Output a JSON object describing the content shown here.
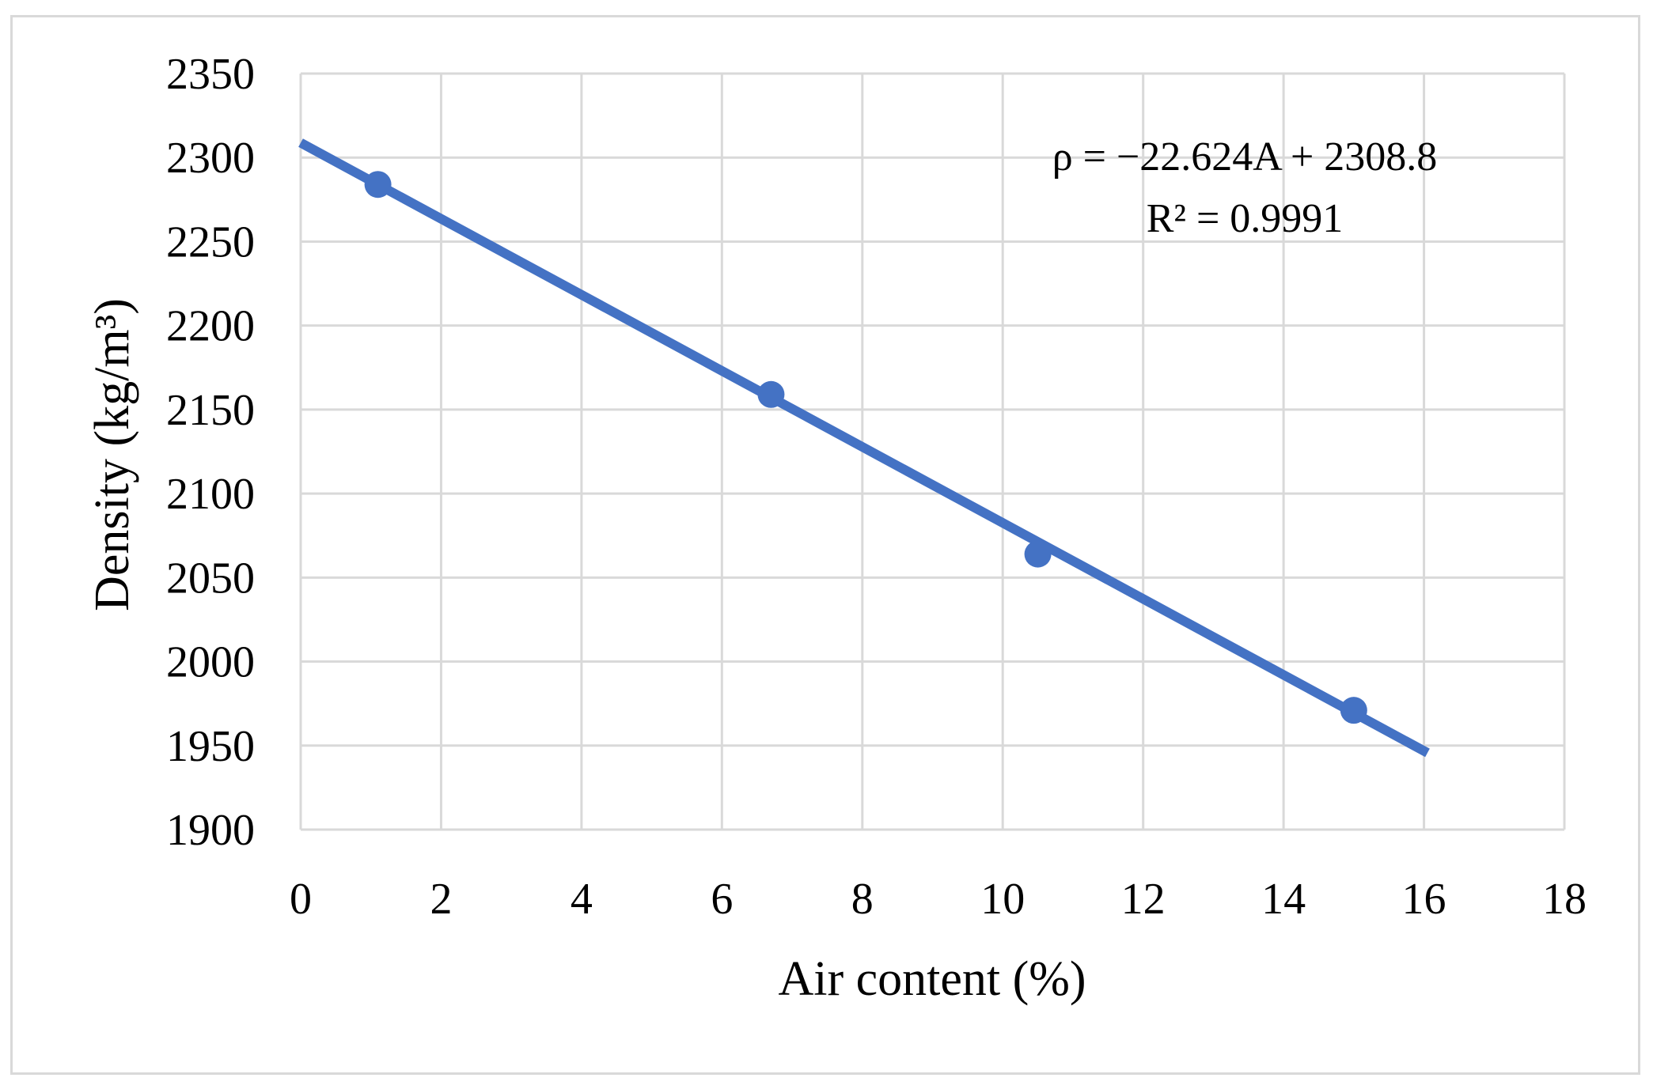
{
  "chart_data": {
    "type": "scatter",
    "xlabel": "Air content (%)",
    "ylabel": "Density (kg/m³)",
    "xlim": [
      0,
      18
    ],
    "ylim": [
      1900,
      2350
    ],
    "x_ticks": [
      "0",
      "2",
      "4",
      "6",
      "8",
      "10",
      "12",
      "14",
      "16",
      "18"
    ],
    "y_ticks": [
      "1900",
      "1950",
      "2000",
      "2050",
      "2100",
      "2150",
      "2200",
      "2250",
      "2300",
      "2350"
    ],
    "grid": true,
    "series": [
      {
        "points": [
          {
            "x": 1.1,
            "y": 2284
          },
          {
            "x": 6.7,
            "y": 2159
          },
          {
            "x": 10.5,
            "y": 2064
          },
          {
            "x": 15.0,
            "y": 1971
          }
        ],
        "color": "#4472c4"
      }
    ],
    "trendline": {
      "slope": -22.624,
      "intercept": 2308.8,
      "x_start": 0,
      "x_end": 16.05,
      "color": "#4472c4"
    },
    "annotations": {
      "equation": "ρ = −22.624A + 2308.8",
      "r_squared": "R² = 0.9991"
    }
  }
}
